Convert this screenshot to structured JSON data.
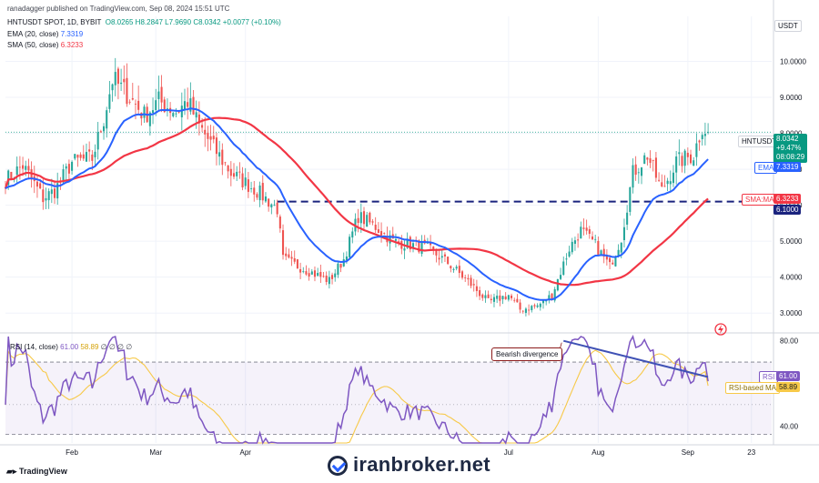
{
  "header": {
    "published": "ranadagger published on TradingView.com, Sep 08, 2024 15:51 UTC",
    "symbol": "HNTUSDT SPOT, 1D, BYBIT",
    "ohlc": {
      "o": "O8.0265",
      "h": "H8.2847",
      "l": "L7.9690",
      "c": "C8.0342",
      "chg": "+0.0077 (+0.10%)"
    }
  },
  "indicators": {
    "ema": {
      "label": "EMA (20, close)",
      "value": "7.3319"
    },
    "sma": {
      "label": "SMA (50, close)",
      "value": "6.3233"
    },
    "rsi": {
      "label": "RSI (14, close)",
      "value": "61.00",
      "ma_value": "58.89",
      "extra": "∅ ∅ ∅ ∅"
    }
  },
  "currency": "USDT",
  "price_tag": {
    "symbol": "HNTUSDT",
    "price": "8.0342",
    "change": "+9.47%",
    "countdown": "08:08:29"
  },
  "tags": {
    "ema": {
      "label": "EMA",
      "value": "7.3319"
    },
    "sma": {
      "label": "SMA:MA",
      "value": "6.3233"
    },
    "level": "6.1000",
    "rsi": {
      "label": "RSI",
      "value": "61.00"
    },
    "rsi_ma": {
      "label": "RSI-based MA",
      "value": "58.89"
    }
  },
  "annotation": "Bearish divergence",
  "watermark": "iranbroker.net",
  "tv_logo": "TradingView",
  "colors": {
    "up": "#26a69a",
    "down": "#ef5350",
    "ema": "#2962ff",
    "sma": "#f23645",
    "rsi": "#7e57c2",
    "rsi_ma": "#f7c948",
    "level": "#1a237e",
    "divergence": "#3f51b5"
  },
  "chart_data": {
    "type": "candlestick",
    "title": "HNTUSDT SPOT, 1D, BYBIT",
    "y_axis_ticks": [
      3.0,
      4.0,
      5.0,
      6.0,
      7.0,
      8.0,
      9.0,
      10.0
    ],
    "y_axis_labels": [
      "3.0000",
      "4.0000",
      "5.0000",
      "6.0000",
      "7.0000",
      "8.0000",
      "9.0000",
      "10.0000"
    ],
    "ylim": [
      2.55,
      11.0
    ],
    "x_axis_labels": [
      {
        "label": "Feb",
        "date": "2024-02-01"
      },
      {
        "label": "Mar",
        "date": "2024-03-01"
      },
      {
        "label": "Apr",
        "date": "2024-04-01"
      },
      {
        "label": "Jul",
        "date": "2024-07-01"
      },
      {
        "label": "Aug",
        "date": "2024-08-01"
      },
      {
        "label": "Sep",
        "date": "2024-09-01"
      },
      {
        "label": "23",
        "date": "2024-09-23"
      }
    ],
    "x_range": [
      "2024-01-09",
      "2024-09-30"
    ],
    "close_anchors": [
      [
        "2024-01-09",
        6.7
      ],
      [
        "2024-01-15",
        7.1
      ],
      [
        "2024-01-22",
        6.2
      ],
      [
        "2024-01-26",
        6.4
      ],
      [
        "2024-02-01",
        7.2
      ],
      [
        "2024-02-08",
        7.3
      ],
      [
        "2024-02-12",
        8.4
      ],
      [
        "2024-02-15",
        9.5
      ],
      [
        "2024-02-20",
        9.1
      ],
      [
        "2024-02-26",
        8.5
      ],
      [
        "2024-03-02",
        8.9
      ],
      [
        "2024-03-08",
        8.6
      ],
      [
        "2024-03-12",
        8.9
      ],
      [
        "2024-03-16",
        8.2
      ],
      [
        "2024-03-21",
        7.6
      ],
      [
        "2024-03-27",
        6.9
      ],
      [
        "2024-04-05",
        6.4
      ],
      [
        "2024-04-12",
        5.9
      ],
      [
        "2024-04-14",
        4.5
      ],
      [
        "2024-04-22",
        4.2
      ],
      [
        "2024-04-30",
        3.9
      ],
      [
        "2024-05-05",
        4.5
      ],
      [
        "2024-05-10",
        5.7
      ],
      [
        "2024-05-16",
        5.4
      ],
      [
        "2024-05-22",
        5.0
      ],
      [
        "2024-05-28",
        4.9
      ],
      [
        "2024-06-03",
        4.8
      ],
      [
        "2024-06-10",
        4.4
      ],
      [
        "2024-06-18",
        3.8
      ],
      [
        "2024-06-24",
        3.3
      ],
      [
        "2024-07-01",
        3.5
      ],
      [
        "2024-07-05",
        3.1
      ],
      [
        "2024-07-11",
        3.2
      ],
      [
        "2024-07-16",
        3.5
      ],
      [
        "2024-07-22",
        4.8
      ],
      [
        "2024-07-26",
        5.3
      ],
      [
        "2024-07-31",
        4.9
      ],
      [
        "2024-08-05",
        4.3
      ],
      [
        "2024-08-09",
        5.1
      ],
      [
        "2024-08-13",
        6.9
      ],
      [
        "2024-08-18",
        7.4
      ],
      [
        "2024-08-23",
        6.4
      ],
      [
        "2024-08-28",
        7.2
      ],
      [
        "2024-09-03",
        7.4
      ],
      [
        "2024-09-06",
        8.2
      ],
      [
        "2024-09-08",
        8.03
      ]
    ],
    "last": {
      "open": 8.0265,
      "high": 8.2847,
      "low": 7.969,
      "close": 8.0342
    },
    "horizontal_level": 6.1,
    "ema": {
      "name": "EMA (20, close)",
      "last": 7.3319
    },
    "sma": {
      "name": "SMA (50, close)",
      "last": 6.3233
    },
    "rsi": {
      "name": "RSI (14, close)",
      "ylim": [
        32,
        82
      ],
      "ticks": [
        40.0,
        80.0
      ],
      "tick_labels": [
        "40.00",
        "80.00"
      ],
      "band": [
        30,
        70
      ],
      "last": 61.0,
      "ma_last": 58.89,
      "divergence_line": [
        [
          "2024-07-20",
          80.0
        ],
        [
          "2024-09-08",
          63.0
        ]
      ]
    }
  }
}
